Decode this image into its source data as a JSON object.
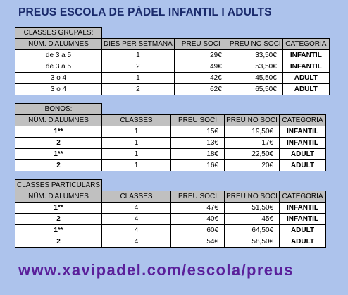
{
  "title": "PREUS ESCOLA DE PÀDEL INFANTIL I ADULTS",
  "sections": [
    {
      "caption": "CLASSES GRUPALS:",
      "headers": [
        "NÚM. D'ALUMNES",
        "DIES PER SETMANA",
        "PREU SOCI",
        "PREU NO SOCI",
        "CATEGORIA"
      ],
      "rows": [
        [
          "de 3 a 5",
          "1",
          "29€",
          "33,50€",
          "INFANTIL"
        ],
        [
          "de 3 a 5",
          "2",
          "49€",
          "53,50€",
          "INFANTIL"
        ],
        [
          "3 o 4",
          "1",
          "42€",
          "45,50€",
          "ADULT"
        ],
        [
          "3 o 4",
          "2",
          "62€",
          "65,50€",
          "ADULT"
        ]
      ]
    },
    {
      "caption": "BONOS:",
      "headers": [
        "NÚM. D'ALUMNES",
        "CLASSES",
        "PREU SOCI",
        "PREU NO SOCI",
        "CATEGORIA"
      ],
      "rows": [
        [
          "1**",
          "1",
          "15€",
          "19,50€",
          "INFANTIL"
        ],
        [
          "2",
          "1",
          "13€",
          "17€",
          "INFANTIL"
        ],
        [
          "1**",
          "1",
          "18€",
          "22,50€",
          "ADULT"
        ],
        [
          "2",
          "1",
          "16€",
          "20€",
          "ADULT"
        ]
      ]
    },
    {
      "caption": "CLASSES PARTICULARS",
      "headers": [
        "NÚM. D'ALUMNES",
        "CLASSES",
        "PREU SOCI",
        "PREU NO SOCI",
        "CATEGORIA"
      ],
      "rows": [
        [
          "1**",
          "4",
          "47€",
          "51,50€",
          "INFANTIL"
        ],
        [
          "2",
          "4",
          "40€",
          "45€",
          "INFANTIL"
        ],
        [
          "1**",
          "4",
          "60€",
          "64,50€",
          "ADULT"
        ],
        [
          "2",
          "4",
          "54€",
          "58,50€",
          "ADULT"
        ]
      ]
    }
  ],
  "footer_url": "www.xavipadel.com/escola/preus"
}
